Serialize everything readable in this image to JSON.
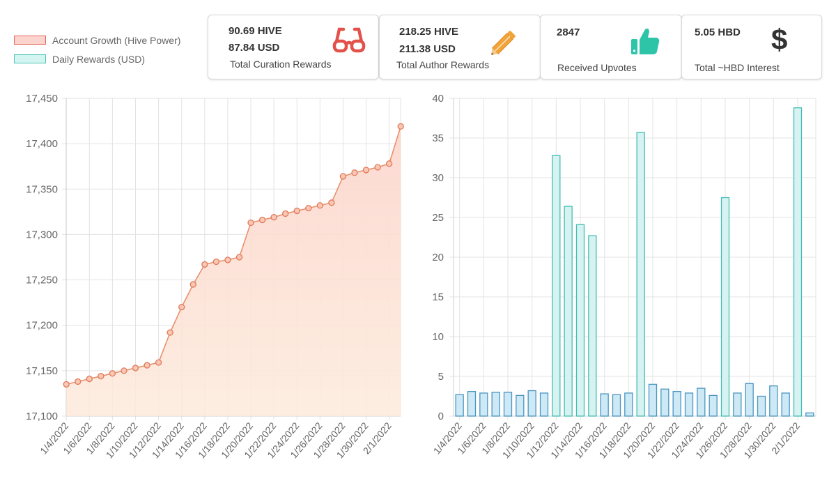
{
  "legend": [
    {
      "label": "Account Growth (Hive Power)",
      "fill": "#fbd5cd",
      "border": "#e5645a"
    },
    {
      "label": "Daily Rewards (USD)",
      "fill": "#d3f4f0",
      "border": "#4bc4b9"
    }
  ],
  "cards": [
    {
      "line1": "90.69 HIVE",
      "line2": "87.84 USD",
      "caption": "Total Curation Rewards",
      "icon": "glasses-icon",
      "icon_color": "#e2524a"
    },
    {
      "line1": "218.25 HIVE",
      "line2": "211.38 USD",
      "caption": "Total Author Rewards",
      "icon": "pencil-icon",
      "icon_color": "#f0a43a"
    },
    {
      "line1": "2847",
      "line2": "",
      "caption": "Received Upvotes",
      "icon": "thumbs-up-icon",
      "icon_color": "#2ec4a8"
    },
    {
      "line1": "5.05 HBD",
      "line2": "",
      "caption": "Total ~HBD Interest",
      "icon": "dollar-icon",
      "icon_color": "#333333"
    }
  ],
  "chart_data": [
    {
      "type": "line",
      "x": [
        "1/4/2022",
        "1/5/2022",
        "1/6/2022",
        "1/7/2022",
        "1/8/2022",
        "1/9/2022",
        "1/10/2022",
        "1/11/2022",
        "1/12/2022",
        "1/13/2022",
        "1/14/2022",
        "1/15/2022",
        "1/16/2022",
        "1/17/2022",
        "1/18/2022",
        "1/19/2022",
        "1/20/2022",
        "1/21/2022",
        "1/22/2022",
        "1/23/2022",
        "1/24/2022",
        "1/25/2022",
        "1/26/2022",
        "1/27/2022",
        "1/28/2022",
        "1/29/2022",
        "1/30/2022",
        "1/31/2022",
        "2/1/2022",
        "2/2/2022"
      ],
      "x_tick_labels": [
        "1/4/2022",
        "1/6/2022",
        "1/8/2022",
        "1/10/2022",
        "1/12/2022",
        "1/14/2022",
        "1/16/2022",
        "1/18/2022",
        "1/20/2022",
        "1/22/2022",
        "1/24/2022",
        "1/26/2022",
        "1/28/2022",
        "1/30/2022",
        "2/1/2022"
      ],
      "series": [
        {
          "name": "Account Growth (Hive Power)",
          "values": [
            17135,
            17138,
            17141,
            17144,
            17147,
            17150,
            17153,
            17156,
            17159,
            17192,
            17220,
            17245,
            17267,
            17270,
            17272,
            17275,
            17313,
            17316,
            17319,
            17323,
            17326,
            17329,
            17332,
            17335,
            17364,
            17368,
            17371,
            17374,
            17378,
            17419
          ]
        }
      ],
      "ylim": [
        17100,
        17450
      ],
      "yticks": [
        17100,
        17150,
        17200,
        17250,
        17300,
        17350,
        17400,
        17450
      ],
      "ytick_labels": [
        "17,100",
        "17,150",
        "17,200",
        "17,250",
        "17,300",
        "17,350",
        "17,400",
        "17,450"
      ],
      "grid": true,
      "colors": {
        "line": "#e8906a",
        "fill_top": "#fcd5cc",
        "fill_bottom": "#fdeadb"
      }
    },
    {
      "type": "bar",
      "x": [
        "1/4/2022",
        "1/5/2022",
        "1/6/2022",
        "1/7/2022",
        "1/8/2022",
        "1/9/2022",
        "1/10/2022",
        "1/11/2022",
        "1/12/2022",
        "1/13/2022",
        "1/14/2022",
        "1/15/2022",
        "1/16/2022",
        "1/17/2022",
        "1/18/2022",
        "1/19/2022",
        "1/20/2022",
        "1/21/2022",
        "1/22/2022",
        "1/23/2022",
        "1/24/2022",
        "1/25/2022",
        "1/26/2022",
        "1/27/2022",
        "1/28/2022",
        "1/29/2022",
        "1/30/2022",
        "1/31/2022",
        "2/1/2022",
        "2/2/2022"
      ],
      "x_tick_labels": [
        "1/4/2022",
        "1/6/2022",
        "1/8/2022",
        "1/10/2022",
        "1/12/2022",
        "1/14/2022",
        "1/16/2022",
        "1/18/2022",
        "1/20/2022",
        "1/22/2022",
        "1/24/2022",
        "1/26/2022",
        "1/28/2022",
        "1/30/2022",
        "2/1/2022"
      ],
      "series": [
        {
          "name": "Daily Rewards (USD)",
          "values": [
            2.7,
            3.1,
            2.9,
            3.0,
            3.0,
            2.6,
            3.2,
            2.9,
            32.8,
            26.4,
            24.1,
            22.7,
            2.8,
            2.7,
            2.9,
            35.7,
            4.0,
            3.4,
            3.1,
            2.9,
            3.5,
            2.6,
            27.5,
            2.9,
            4.1,
            2.5,
            3.8,
            2.9,
            38.8,
            0.4
          ]
        }
      ],
      "ylim": [
        0,
        40
      ],
      "yticks": [
        0,
        5,
        10,
        15,
        20,
        25,
        30,
        35,
        40
      ],
      "grid": true,
      "colors": {
        "low_fill": "#cde9f5",
        "low_border": "#4a95c0",
        "high_fill": "#d6f3f1",
        "high_border": "#44bdb3"
      }
    }
  ]
}
